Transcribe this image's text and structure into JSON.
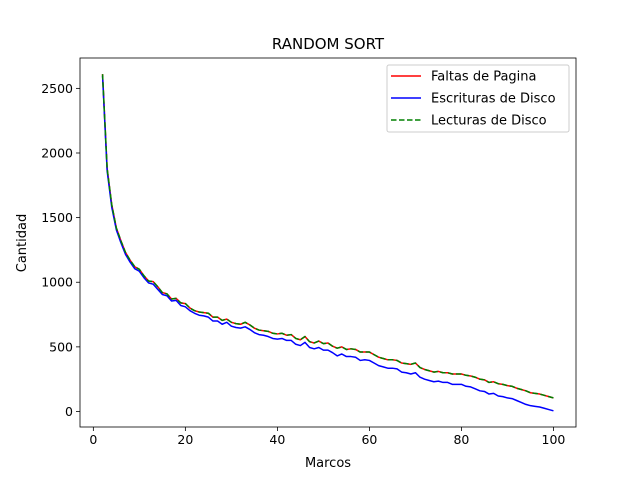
{
  "chart_data": {
    "type": "line",
    "title": "RANDOM SORT",
    "xlabel": "Marcos",
    "ylabel": "Cantidad",
    "xlim": [
      -2.9,
      104.9
    ],
    "ylim": [
      -120,
      2735
    ],
    "xticks": [
      0,
      20,
      40,
      60,
      80,
      100
    ],
    "yticks": [
      0,
      500,
      1000,
      1500,
      2000,
      2500
    ],
    "grid": false,
    "legend_position": "top-right",
    "x": [
      2,
      3,
      4,
      5,
      6,
      7,
      8,
      9,
      10,
      11,
      12,
      13,
      14,
      15,
      16,
      17,
      18,
      19,
      20,
      21,
      22,
      23,
      24,
      25,
      26,
      27,
      28,
      29,
      30,
      31,
      32,
      33,
      34,
      35,
      36,
      37,
      38,
      39,
      40,
      41,
      42,
      43,
      44,
      45,
      46,
      47,
      48,
      49,
      50,
      51,
      52,
      53,
      54,
      55,
      56,
      57,
      58,
      59,
      60,
      61,
      62,
      63,
      64,
      65,
      66,
      67,
      68,
      69,
      70,
      71,
      72,
      73,
      74,
      75,
      76,
      77,
      78,
      79,
      80,
      81,
      82,
      83,
      84,
      85,
      86,
      87,
      88,
      89,
      90,
      91,
      92,
      93,
      94,
      95,
      96,
      97,
      98,
      99,
      100
    ],
    "series": [
      {
        "name": "Faltas de Pagina",
        "color": "#ff0000",
        "style": "solid",
        "values": [
          2610,
          1880,
          1600,
          1420,
          1320,
          1230,
          1170,
          1120,
          1100,
          1050,
          1010,
          1005,
          965,
          920,
          910,
          870,
          875,
          840,
          835,
          800,
          780,
          770,
          765,
          760,
          730,
          730,
          705,
          715,
          690,
          680,
          675,
          690,
          670,
          645,
          630,
          625,
          620,
          605,
          600,
          605,
          590,
          595,
          565,
          555,
          580,
          540,
          530,
          545,
          525,
          530,
          505,
          490,
          500,
          480,
          485,
          480,
          460,
          460,
          460,
          440,
          420,
          410,
          400,
          400,
          395,
          375,
          370,
          365,
          375,
          340,
          325,
          315,
          305,
          310,
          300,
          300,
          290,
          290,
          290,
          280,
          275,
          265,
          250,
          245,
          225,
          230,
          215,
          210,
          200,
          195,
          180,
          170,
          160,
          145,
          140,
          135,
          125,
          115,
          105
        ]
      },
      {
        "name": "Escrituras de Disco",
        "color": "#0000ff",
        "style": "solid",
        "values": [
          2595,
          1860,
          1580,
          1405,
          1305,
          1215,
          1155,
          1105,
          1085,
          1035,
          995,
          985,
          945,
          905,
          895,
          855,
          860,
          820,
          810,
          780,
          760,
          745,
          740,
          730,
          700,
          700,
          675,
          690,
          660,
          650,
          645,
          655,
          635,
          610,
          595,
          590,
          580,
          565,
          560,
          565,
          550,
          550,
          520,
          510,
          535,
          495,
          485,
          495,
          475,
          475,
          455,
          430,
          445,
          425,
          425,
          420,
          395,
          400,
          395,
          375,
          355,
          345,
          335,
          335,
          330,
          305,
          300,
          290,
          300,
          265,
          250,
          240,
          230,
          235,
          225,
          225,
          210,
          210,
          210,
          195,
          190,
          175,
          160,
          155,
          135,
          140,
          120,
          115,
          105,
          100,
          85,
          70,
          55,
          45,
          40,
          35,
          25,
          15,
          5
        ]
      },
      {
        "name": "Lecturas de Disco",
        "color": "#008000",
        "style": "dashed",
        "values": [
          2610,
          1880,
          1600,
          1420,
          1320,
          1230,
          1170,
          1120,
          1100,
          1050,
          1010,
          1005,
          965,
          920,
          910,
          870,
          875,
          840,
          835,
          800,
          780,
          770,
          765,
          760,
          730,
          730,
          705,
          715,
          690,
          680,
          675,
          690,
          670,
          645,
          630,
          625,
          620,
          605,
          600,
          605,
          590,
          595,
          565,
          555,
          580,
          540,
          530,
          545,
          525,
          530,
          505,
          490,
          500,
          480,
          485,
          480,
          460,
          460,
          460,
          440,
          420,
          410,
          400,
          400,
          395,
          375,
          370,
          365,
          375,
          340,
          325,
          315,
          305,
          310,
          300,
          300,
          290,
          290,
          290,
          280,
          275,
          265,
          250,
          245,
          225,
          230,
          215,
          210,
          200,
          195,
          180,
          170,
          160,
          145,
          140,
          135,
          125,
          115,
          105
        ]
      }
    ]
  }
}
